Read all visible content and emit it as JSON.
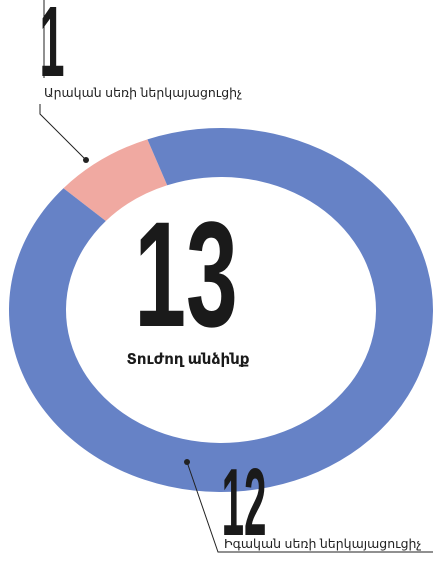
{
  "chart_data": {
    "type": "donut",
    "categories": [
      "Արական սեռի ներկայացուցիչ",
      "Իգական սեռի ներկայացուցիչ"
    ],
    "values": [
      1,
      12
    ],
    "colors": [
      "#f0a9a1",
      "#6682c6"
    ],
    "total": 13,
    "center_label": "Տուժող անձինք"
  }
}
